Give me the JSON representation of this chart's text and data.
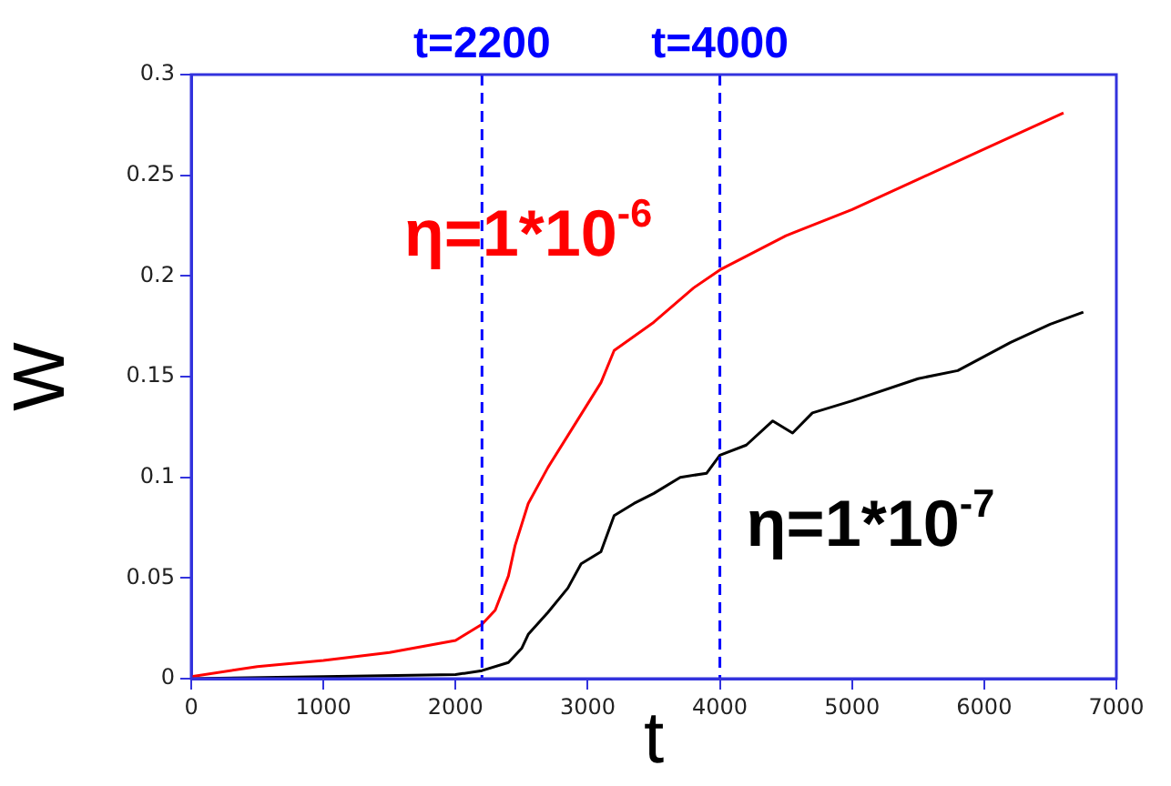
{
  "chart_data": {
    "type": "line",
    "xlabel": "t",
    "ylabel": "W",
    "xlim": [
      0,
      7000
    ],
    "xticks": [
      0,
      1000,
      2000,
      3000,
      4000,
      5000,
      6000,
      7000
    ],
    "ylim": [
      0,
      0.3
    ],
    "yticks": [
      0,
      0.05,
      0.1,
      0.15,
      0.2,
      0.25,
      0.3
    ],
    "grid": false,
    "legend": false,
    "marker": "none",
    "line_style": "solid",
    "ref_lines": [
      {
        "axis": "x",
        "value": 2200,
        "label": "t=2200",
        "color": "#0000ff",
        "line_style": "dashed"
      },
      {
        "axis": "x",
        "value": 4000,
        "label": "t=4000",
        "color": "#0000ff",
        "line_style": "dashed"
      }
    ],
    "series": [
      {
        "name": "η=1*10$^{-6}$",
        "color": "#ff0000",
        "x": [
          0,
          500,
          1000,
          1500,
          2000,
          2200,
          2300,
          2400,
          2450,
          2550,
          2700,
          2900,
          3100,
          3200,
          3500,
          3800,
          4000,
          4500,
          5000,
          5500,
          6000,
          6600
        ],
        "values": [
          0.001,
          0.006,
          0.009,
          0.013,
          0.019,
          0.027,
          0.034,
          0.051,
          0.066,
          0.087,
          0.105,
          0.126,
          0.147,
          0.163,
          0.177,
          0.194,
          0.203,
          0.22,
          0.233,
          0.248,
          0.263,
          0.281
        ]
      },
      {
        "name": "η=1*10$^{-7}$",
        "color": "#000000",
        "x": [
          0,
          1000,
          2000,
          2200,
          2400,
          2500,
          2550,
          2700,
          2850,
          2950,
          3100,
          3200,
          3350,
          3500,
          3700,
          3900,
          4000,
          4200,
          4400,
          4550,
          4700,
          5000,
          5500,
          5800,
          6200,
          6500,
          6750
        ],
        "values": [
          0.0,
          0.001,
          0.002,
          0.004,
          0.008,
          0.015,
          0.022,
          0.033,
          0.045,
          0.057,
          0.063,
          0.081,
          0.087,
          0.092,
          0.1,
          0.102,
          0.111,
          0.116,
          0.128,
          0.122,
          0.132,
          0.138,
          0.149,
          0.153,
          0.167,
          0.176,
          0.182
        ]
      }
    ]
  }
}
